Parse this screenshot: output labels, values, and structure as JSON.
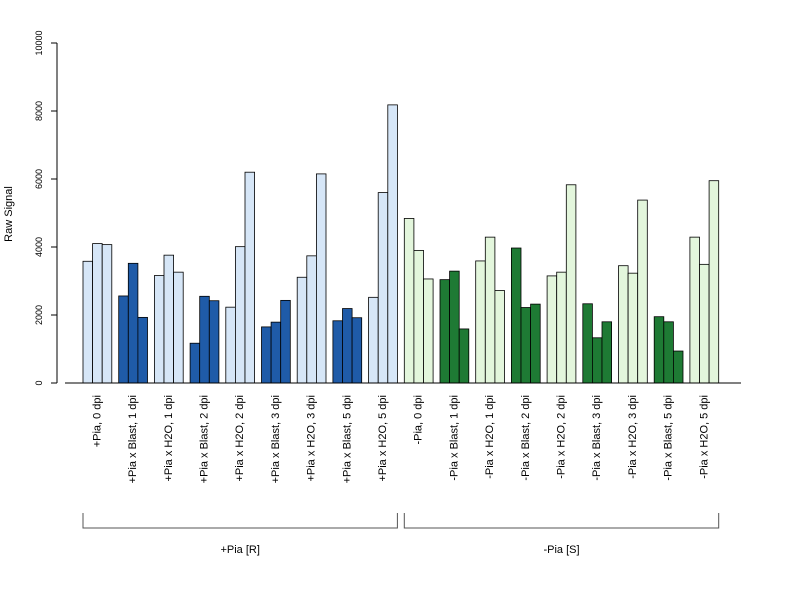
{
  "chart_data": {
    "type": "bar",
    "ylabel": "Raw Signal",
    "ylim": [
      0,
      10000
    ],
    "yticks": [
      0,
      2000,
      4000,
      6000,
      8000,
      10000
    ],
    "colors": {
      "pia_r_light": "#d6e6f7",
      "pia_r_dark": "#1f5ba8",
      "pia_s_light": "#e3f6dc",
      "pia_s_dark": "#1e7a34",
      "edge": "#000000",
      "bracket": "#555555"
    },
    "groups": [
      {
        "label": "+Pia [R]",
        "categories": [
          0,
          1,
          2,
          3,
          4,
          5,
          6,
          7,
          8
        ]
      },
      {
        "label": "-Pia [S]",
        "categories": [
          9,
          10,
          11,
          12,
          13,
          14,
          15,
          16,
          17
        ]
      }
    ],
    "categories": [
      {
        "label": "+Pia, 0 dpi",
        "shade": "pia_r_light",
        "values": [
          3580,
          4100,
          4070
        ]
      },
      {
        "label": "+Pia x Blast, 1 dpi",
        "shade": "pia_r_dark",
        "values": [
          2560,
          3520,
          1930
        ]
      },
      {
        "label": "+Pia x H2O, 1 dpi",
        "shade": "pia_r_light",
        "values": [
          3160,
          3760,
          3260
        ]
      },
      {
        "label": "+Pia x Blast, 2 dpi",
        "shade": "pia_r_dark",
        "values": [
          1170,
          2550,
          2420
        ]
      },
      {
        "label": "+Pia x H2O, 2 dpi",
        "shade": "pia_r_light",
        "values": [
          2230,
          4010,
          6200
        ]
      },
      {
        "label": "+Pia x Blast, 3 dpi",
        "shade": "pia_r_dark",
        "values": [
          1650,
          1790,
          2430
        ]
      },
      {
        "label": "+Pia x H2O, 3 dpi",
        "shade": "pia_r_light",
        "values": [
          3110,
          3740,
          6150
        ]
      },
      {
        "label": "+Pia x Blast, 5 dpi",
        "shade": "pia_r_dark",
        "values": [
          1830,
          2190,
          1920
        ]
      },
      {
        "label": "+Pia x H2O, 5 dpi",
        "shade": "pia_r_light",
        "values": [
          2520,
          5600,
          8180
        ]
      },
      {
        "label": "-Pia, 0 dpi",
        "shade": "pia_s_light",
        "values": [
          4840,
          3900,
          3060
        ]
      },
      {
        "label": "-Pia x Blast, 1 dpi",
        "shade": "pia_s_dark",
        "values": [
          3040,
          3290,
          1590
        ]
      },
      {
        "label": "-Pia x H2O, 1 dpi",
        "shade": "pia_s_light",
        "values": [
          3590,
          4290,
          2720
        ]
      },
      {
        "label": "-Pia x Blast, 2 dpi",
        "shade": "pia_s_dark",
        "values": [
          3970,
          2220,
          2320
        ]
      },
      {
        "label": "-Pia x H2O, 2 dpi",
        "shade": "pia_s_light",
        "values": [
          3150,
          3260,
          5830
        ]
      },
      {
        "label": "-Pia x Blast, 3 dpi",
        "shade": "pia_s_dark",
        "values": [
          2330,
          1330,
          1800
        ]
      },
      {
        "label": "-Pia x H2O, 3 dpi",
        "shade": "pia_s_light",
        "values": [
          3450,
          3230,
          5380
        ]
      },
      {
        "label": "-Pia x Blast, 5 dpi",
        "shade": "pia_s_dark",
        "values": [
          1950,
          1800,
          940
        ]
      },
      {
        "label": "-Pia x H2O, 5 dpi",
        "shade": "pia_s_light",
        "values": [
          4290,
          3490,
          5950
        ]
      }
    ]
  }
}
